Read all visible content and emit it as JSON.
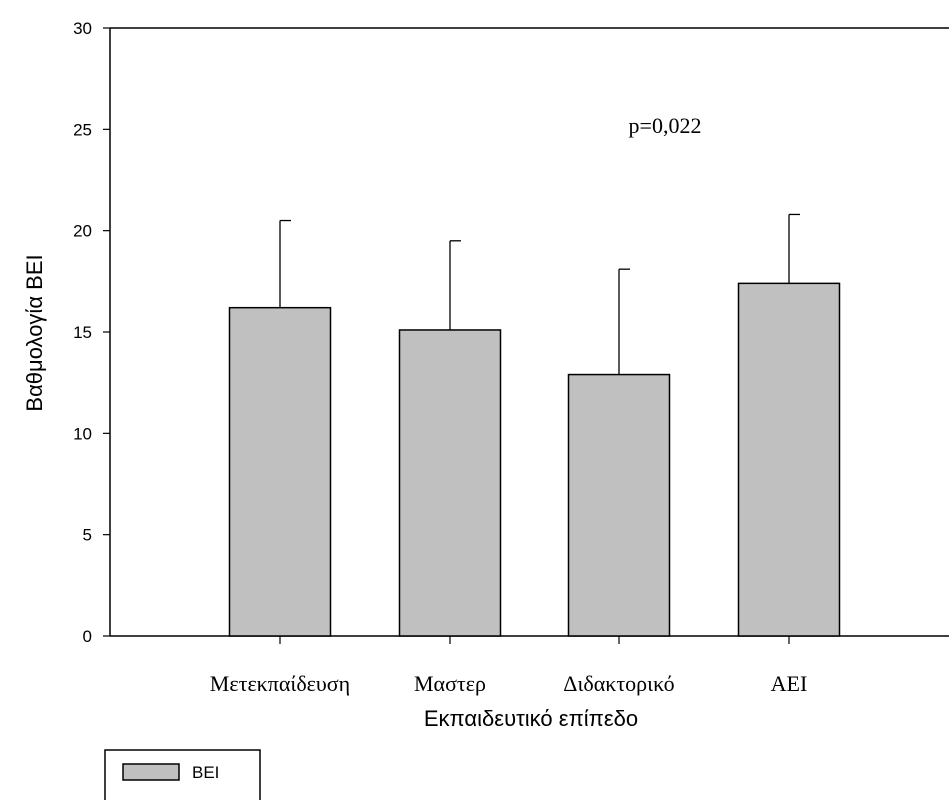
{
  "chart_data": {
    "type": "bar",
    "categories": [
      "Μετεκπαίδευση",
      "Μαστερ",
      "Διδακτορικό",
      "ΑΕΙ"
    ],
    "series": [
      {
        "name": "BEI",
        "values": [
          16.2,
          15.1,
          12.9,
          17.4
        ],
        "error_plus": [
          4.3,
          4.4,
          5.2,
          3.4
        ],
        "color": "#c0c0c0"
      }
    ],
    "xlabel": "Εκπαιδευτικό επίπεδο",
    "ylabel": "Βαθμολογία BEI",
    "ylim": [
      0,
      30
    ],
    "yticks": [
      0,
      5,
      10,
      15,
      20,
      25,
      30
    ],
    "annotation": "p=0,022",
    "grid": false,
    "legend_position": "bottom-left"
  }
}
